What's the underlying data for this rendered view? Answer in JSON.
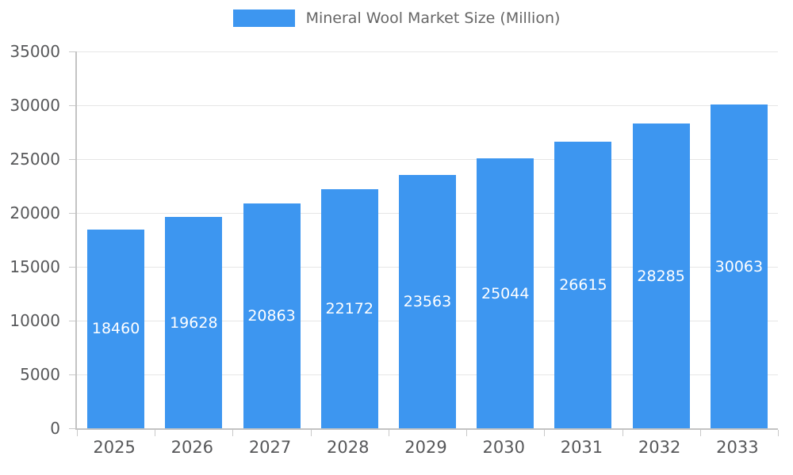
{
  "legend": {
    "label": "Mineral Wool Market Size (Million)"
  },
  "colors": {
    "bar": "#3d96f0",
    "value_label": "#ffffff",
    "axis_text": "#57585a",
    "grid": "#e6e6e6",
    "axis_line": "#c3c3c3"
  },
  "chart_data": {
    "type": "bar",
    "title": "Mineral Wool Market Size (Million)",
    "xlabel": "",
    "ylabel": "",
    "categories": [
      "2025",
      "2026",
      "2027",
      "2028",
      "2029",
      "2030",
      "2031",
      "2032",
      "2033"
    ],
    "series": [
      {
        "name": "Mineral Wool Market Size (Million)",
        "values": [
          18460,
          19628,
          20863,
          22172,
          23563,
          25044,
          26615,
          28285,
          30063
        ]
      }
    ],
    "ylim": [
      0,
      35000
    ],
    "yticks": [
      0,
      5000,
      10000,
      15000,
      20000,
      25000,
      30000,
      35000
    ],
    "grid": "horizontal",
    "legend_position": "top",
    "value_labels": "inside-center-white"
  }
}
